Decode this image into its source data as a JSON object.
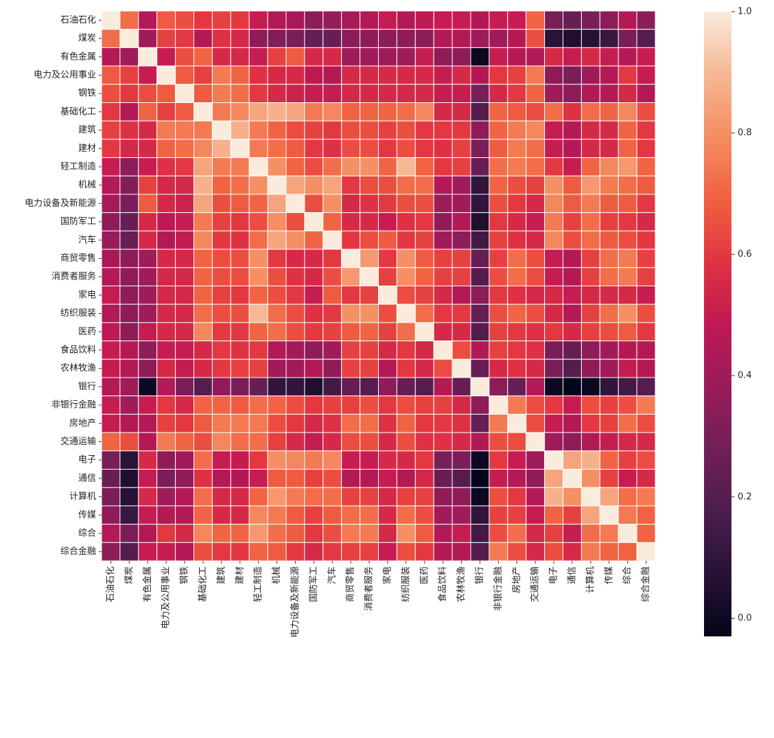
{
  "chart_data": {
    "type": "heatmap",
    "title": "",
    "xlabel": "",
    "ylabel": "",
    "labels": [
      "石油石化",
      "煤炭",
      "有色金属",
      "电力及公用事业",
      "钢铁",
      "基础化工",
      "建筑",
      "建材",
      "轻工制造",
      "机械",
      "电力设备及新能源",
      "国防军工",
      "汽车",
      "商贸零售",
      "消费者服务",
      "家电",
      "纺织服装",
      "医药",
      "食品饮料",
      "农林牧渔",
      "银行",
      "非银行金融",
      "房地产",
      "交通运输",
      "电子",
      "通信",
      "计算机",
      "传媒",
      "综合",
      "综合金融"
    ],
    "colorbar": {
      "min": 0.0,
      "max": 1.0,
      "ticks": [
        0.0,
        0.2,
        0.4,
        0.6,
        0.8,
        1.0
      ],
      "tick_labels": [
        "0.0",
        "0.2",
        "0.4",
        "0.6",
        "0.8",
        "1.0"
      ],
      "vmin": -0.03,
      "vmax": 1.0
    },
    "colormap": "rocket",
    "grid": "white cell borders",
    "matrix": [
      [
        1.0,
        0.72,
        0.45,
        0.68,
        0.65,
        0.6,
        0.62,
        0.6,
        0.5,
        0.45,
        0.42,
        0.35,
        0.38,
        0.42,
        0.45,
        0.5,
        0.45,
        0.48,
        0.5,
        0.5,
        0.45,
        0.5,
        0.5,
        0.7,
        0.3,
        0.25,
        0.3,
        0.35,
        0.45,
        0.35
      ],
      [
        0.72,
        1.0,
        0.4,
        0.62,
        0.6,
        0.45,
        0.58,
        0.55,
        0.35,
        0.32,
        0.3,
        0.25,
        0.25,
        0.35,
        0.35,
        0.35,
        0.35,
        0.35,
        0.45,
        0.45,
        0.4,
        0.4,
        0.45,
        0.65,
        0.08,
        0.05,
        0.07,
        0.12,
        0.3,
        0.2
      ],
      [
        0.45,
        0.4,
        1.0,
        0.5,
        0.65,
        0.7,
        0.55,
        0.55,
        0.5,
        0.62,
        0.68,
        0.55,
        0.55,
        0.4,
        0.4,
        0.4,
        0.4,
        0.5,
        0.35,
        0.35,
        0.0,
        0.5,
        0.45,
        0.45,
        0.55,
        0.5,
        0.55,
        0.5,
        0.45,
        0.5
      ],
      [
        0.68,
        0.62,
        0.5,
        1.0,
        0.68,
        0.62,
        0.75,
        0.7,
        0.58,
        0.55,
        0.55,
        0.48,
        0.45,
        0.55,
        0.55,
        0.55,
        0.55,
        0.55,
        0.5,
        0.55,
        0.45,
        0.6,
        0.62,
        0.75,
        0.35,
        0.3,
        0.4,
        0.45,
        0.6,
        0.5
      ],
      [
        0.65,
        0.6,
        0.65,
        0.68,
        1.0,
        0.68,
        0.75,
        0.72,
        0.6,
        0.55,
        0.52,
        0.5,
        0.5,
        0.55,
        0.55,
        0.55,
        0.55,
        0.55,
        0.5,
        0.5,
        0.3,
        0.55,
        0.6,
        0.7,
        0.4,
        0.35,
        0.45,
        0.45,
        0.55,
        0.45
      ],
      [
        0.6,
        0.45,
        0.7,
        0.62,
        0.68,
        1.0,
        0.75,
        0.78,
        0.85,
        0.88,
        0.85,
        0.75,
        0.78,
        0.7,
        0.7,
        0.7,
        0.72,
        0.78,
        0.55,
        0.55,
        0.2,
        0.7,
        0.68,
        0.65,
        0.72,
        0.58,
        0.72,
        0.7,
        0.78,
        0.65
      ],
      [
        0.62,
        0.58,
        0.55,
        0.75,
        0.75,
        0.75,
        1.0,
        0.88,
        0.75,
        0.7,
        0.65,
        0.62,
        0.6,
        0.65,
        0.65,
        0.62,
        0.65,
        0.6,
        0.6,
        0.6,
        0.35,
        0.7,
        0.75,
        0.78,
        0.5,
        0.45,
        0.55,
        0.55,
        0.7,
        0.6
      ],
      [
        0.6,
        0.55,
        0.55,
        0.7,
        0.72,
        0.78,
        0.88,
        1.0,
        0.75,
        0.72,
        0.68,
        0.6,
        0.58,
        0.65,
        0.65,
        0.6,
        0.65,
        0.6,
        0.58,
        0.62,
        0.3,
        0.68,
        0.75,
        0.72,
        0.5,
        0.45,
        0.55,
        0.55,
        0.7,
        0.6
      ],
      [
        0.5,
        0.35,
        0.5,
        0.58,
        0.6,
        0.85,
        0.75,
        0.75,
        1.0,
        0.8,
        0.7,
        0.65,
        0.72,
        0.8,
        0.8,
        0.7,
        0.9,
        0.7,
        0.6,
        0.62,
        0.25,
        0.72,
        0.75,
        0.72,
        0.6,
        0.5,
        0.7,
        0.78,
        0.82,
        0.7
      ],
      [
        0.45,
        0.32,
        0.62,
        0.55,
        0.55,
        0.88,
        0.7,
        0.72,
        0.8,
        1.0,
        0.85,
        0.8,
        0.85,
        0.6,
        0.65,
        0.65,
        0.72,
        0.72,
        0.45,
        0.4,
        0.1,
        0.7,
        0.65,
        0.62,
        0.8,
        0.68,
        0.82,
        0.75,
        0.72,
        0.68
      ],
      [
        0.42,
        0.3,
        0.68,
        0.55,
        0.52,
        0.85,
        0.65,
        0.68,
        0.7,
        0.85,
        1.0,
        0.65,
        0.8,
        0.55,
        0.58,
        0.6,
        0.65,
        0.65,
        0.4,
        0.4,
        0.1,
        0.65,
        0.6,
        0.55,
        0.78,
        0.68,
        0.75,
        0.68,
        0.68,
        0.6
      ],
      [
        0.35,
        0.25,
        0.55,
        0.48,
        0.5,
        0.75,
        0.62,
        0.6,
        0.65,
        0.8,
        0.65,
        1.0,
        0.7,
        0.55,
        0.55,
        0.5,
        0.58,
        0.6,
        0.35,
        0.45,
        0.05,
        0.6,
        0.55,
        0.5,
        0.75,
        0.62,
        0.72,
        0.62,
        0.6,
        0.55
      ],
      [
        0.38,
        0.25,
        0.55,
        0.45,
        0.5,
        0.78,
        0.6,
        0.58,
        0.72,
        0.85,
        0.8,
        0.7,
        1.0,
        0.6,
        0.65,
        0.68,
        0.6,
        0.62,
        0.4,
        0.35,
        0.15,
        0.62,
        0.58,
        0.55,
        0.78,
        0.65,
        0.72,
        0.68,
        0.65,
        0.6
      ],
      [
        0.42,
        0.35,
        0.4,
        0.55,
        0.55,
        0.7,
        0.65,
        0.65,
        0.8,
        0.6,
        0.55,
        0.55,
        0.6,
        1.0,
        0.82,
        0.6,
        0.8,
        0.68,
        0.62,
        0.62,
        0.25,
        0.62,
        0.72,
        0.65,
        0.5,
        0.45,
        0.62,
        0.72,
        0.75,
        0.62
      ],
      [
        0.45,
        0.35,
        0.4,
        0.55,
        0.55,
        0.7,
        0.65,
        0.65,
        0.8,
        0.65,
        0.58,
        0.55,
        0.65,
        0.82,
        1.0,
        0.62,
        0.8,
        0.7,
        0.62,
        0.62,
        0.2,
        0.65,
        0.72,
        0.65,
        0.5,
        0.45,
        0.62,
        0.72,
        0.75,
        0.62
      ],
      [
        0.5,
        0.35,
        0.4,
        0.55,
        0.55,
        0.7,
        0.62,
        0.6,
        0.7,
        0.65,
        0.6,
        0.5,
        0.68,
        0.6,
        0.62,
        1.0,
        0.65,
        0.62,
        0.55,
        0.45,
        0.35,
        0.6,
        0.58,
        0.55,
        0.55,
        0.5,
        0.55,
        0.55,
        0.55,
        0.5
      ],
      [
        0.45,
        0.35,
        0.4,
        0.55,
        0.55,
        0.72,
        0.65,
        0.65,
        0.9,
        0.72,
        0.65,
        0.58,
        0.6,
        0.8,
        0.8,
        0.65,
        1.0,
        0.72,
        0.6,
        0.6,
        0.25,
        0.65,
        0.7,
        0.65,
        0.55,
        0.45,
        0.62,
        0.72,
        0.8,
        0.65
      ],
      [
        0.48,
        0.35,
        0.5,
        0.55,
        0.55,
        0.78,
        0.6,
        0.6,
        0.7,
        0.72,
        0.65,
        0.6,
        0.62,
        0.68,
        0.7,
        0.62,
        0.72,
        1.0,
        0.55,
        0.55,
        0.2,
        0.62,
        0.6,
        0.58,
        0.6,
        0.55,
        0.62,
        0.65,
        0.68,
        0.6
      ],
      [
        0.5,
        0.45,
        0.35,
        0.5,
        0.5,
        0.55,
        0.6,
        0.58,
        0.6,
        0.45,
        0.4,
        0.35,
        0.4,
        0.62,
        0.62,
        0.55,
        0.6,
        0.55,
        1.0,
        0.65,
        0.45,
        0.62,
        0.6,
        0.58,
        0.3,
        0.25,
        0.35,
        0.4,
        0.45,
        0.45
      ],
      [
        0.5,
        0.45,
        0.35,
        0.55,
        0.5,
        0.55,
        0.6,
        0.62,
        0.62,
        0.4,
        0.4,
        0.45,
        0.35,
        0.62,
        0.62,
        0.45,
        0.6,
        0.55,
        0.65,
        1.0,
        0.25,
        0.55,
        0.58,
        0.55,
        0.3,
        0.2,
        0.35,
        0.4,
        0.5,
        0.45
      ],
      [
        0.45,
        0.4,
        0.0,
        0.45,
        0.3,
        0.2,
        0.35,
        0.3,
        0.25,
        0.1,
        0.1,
        0.05,
        0.15,
        0.25,
        0.2,
        0.35,
        0.25,
        0.2,
        0.45,
        0.25,
        1.0,
        0.35,
        0.25,
        0.45,
        0.0,
        -0.03,
        0.0,
        0.1,
        0.15,
        0.2
      ],
      [
        0.5,
        0.4,
        0.5,
        0.6,
        0.55,
        0.7,
        0.7,
        0.68,
        0.72,
        0.7,
        0.65,
        0.6,
        0.62,
        0.62,
        0.65,
        0.6,
        0.65,
        0.62,
        0.62,
        0.55,
        0.35,
        1.0,
        0.75,
        0.65,
        0.6,
        0.5,
        0.65,
        0.62,
        0.65,
        0.75
      ],
      [
        0.5,
        0.45,
        0.45,
        0.62,
        0.6,
        0.68,
        0.75,
        0.75,
        0.75,
        0.65,
        0.6,
        0.55,
        0.58,
        0.72,
        0.72,
        0.58,
        0.7,
        0.6,
        0.6,
        0.58,
        0.25,
        0.75,
        1.0,
        0.65,
        0.5,
        0.45,
        0.6,
        0.62,
        0.72,
        0.65
      ],
      [
        0.7,
        0.65,
        0.45,
        0.75,
        0.7,
        0.65,
        0.78,
        0.72,
        0.72,
        0.62,
        0.55,
        0.5,
        0.55,
        0.65,
        0.65,
        0.55,
        0.65,
        0.58,
        0.58,
        0.55,
        0.45,
        0.65,
        0.65,
        1.0,
        0.4,
        0.35,
        0.45,
        0.5,
        0.55,
        0.55
      ],
      [
        0.3,
        0.08,
        0.55,
        0.35,
        0.4,
        0.72,
        0.5,
        0.5,
        0.6,
        0.8,
        0.78,
        0.75,
        0.78,
        0.5,
        0.5,
        0.55,
        0.55,
        0.6,
        0.3,
        0.3,
        0.0,
        0.6,
        0.5,
        0.4,
        1.0,
        0.85,
        0.88,
        0.7,
        0.62,
        0.65
      ],
      [
        0.25,
        0.05,
        0.5,
        0.3,
        0.35,
        0.58,
        0.45,
        0.45,
        0.5,
        0.68,
        0.68,
        0.62,
        0.65,
        0.45,
        0.45,
        0.5,
        0.45,
        0.55,
        0.25,
        0.2,
        -0.03,
        0.5,
        0.45,
        0.35,
        0.85,
        1.0,
        0.8,
        0.62,
        0.5,
        0.55
      ],
      [
        0.3,
        0.07,
        0.55,
        0.4,
        0.45,
        0.72,
        0.55,
        0.55,
        0.7,
        0.82,
        0.75,
        0.72,
        0.72,
        0.62,
        0.62,
        0.55,
        0.62,
        0.62,
        0.35,
        0.35,
        0.0,
        0.65,
        0.6,
        0.45,
        0.88,
        0.8,
        1.0,
        0.85,
        0.72,
        0.75
      ],
      [
        0.35,
        0.12,
        0.5,
        0.45,
        0.45,
        0.7,
        0.55,
        0.55,
        0.78,
        0.75,
        0.68,
        0.62,
        0.68,
        0.72,
        0.72,
        0.55,
        0.72,
        0.65,
        0.4,
        0.4,
        0.1,
        0.62,
        0.62,
        0.5,
        0.7,
        0.62,
        0.85,
        1.0,
        0.75,
        0.7
      ],
      [
        0.45,
        0.3,
        0.45,
        0.6,
        0.55,
        0.78,
        0.7,
        0.7,
        0.82,
        0.72,
        0.68,
        0.6,
        0.65,
        0.75,
        0.75,
        0.55,
        0.8,
        0.68,
        0.45,
        0.5,
        0.15,
        0.65,
        0.72,
        0.55,
        0.62,
        0.5,
        0.72,
        0.75,
        1.0,
        0.7
      ],
      [
        0.35,
        0.2,
        0.5,
        0.5,
        0.45,
        0.65,
        0.6,
        0.6,
        0.7,
        0.68,
        0.6,
        0.55,
        0.6,
        0.62,
        0.62,
        0.5,
        0.65,
        0.6,
        0.45,
        0.45,
        0.2,
        0.75,
        0.65,
        0.55,
        0.65,
        0.55,
        0.75,
        0.7,
        0.7,
        1.0
      ]
    ]
  }
}
